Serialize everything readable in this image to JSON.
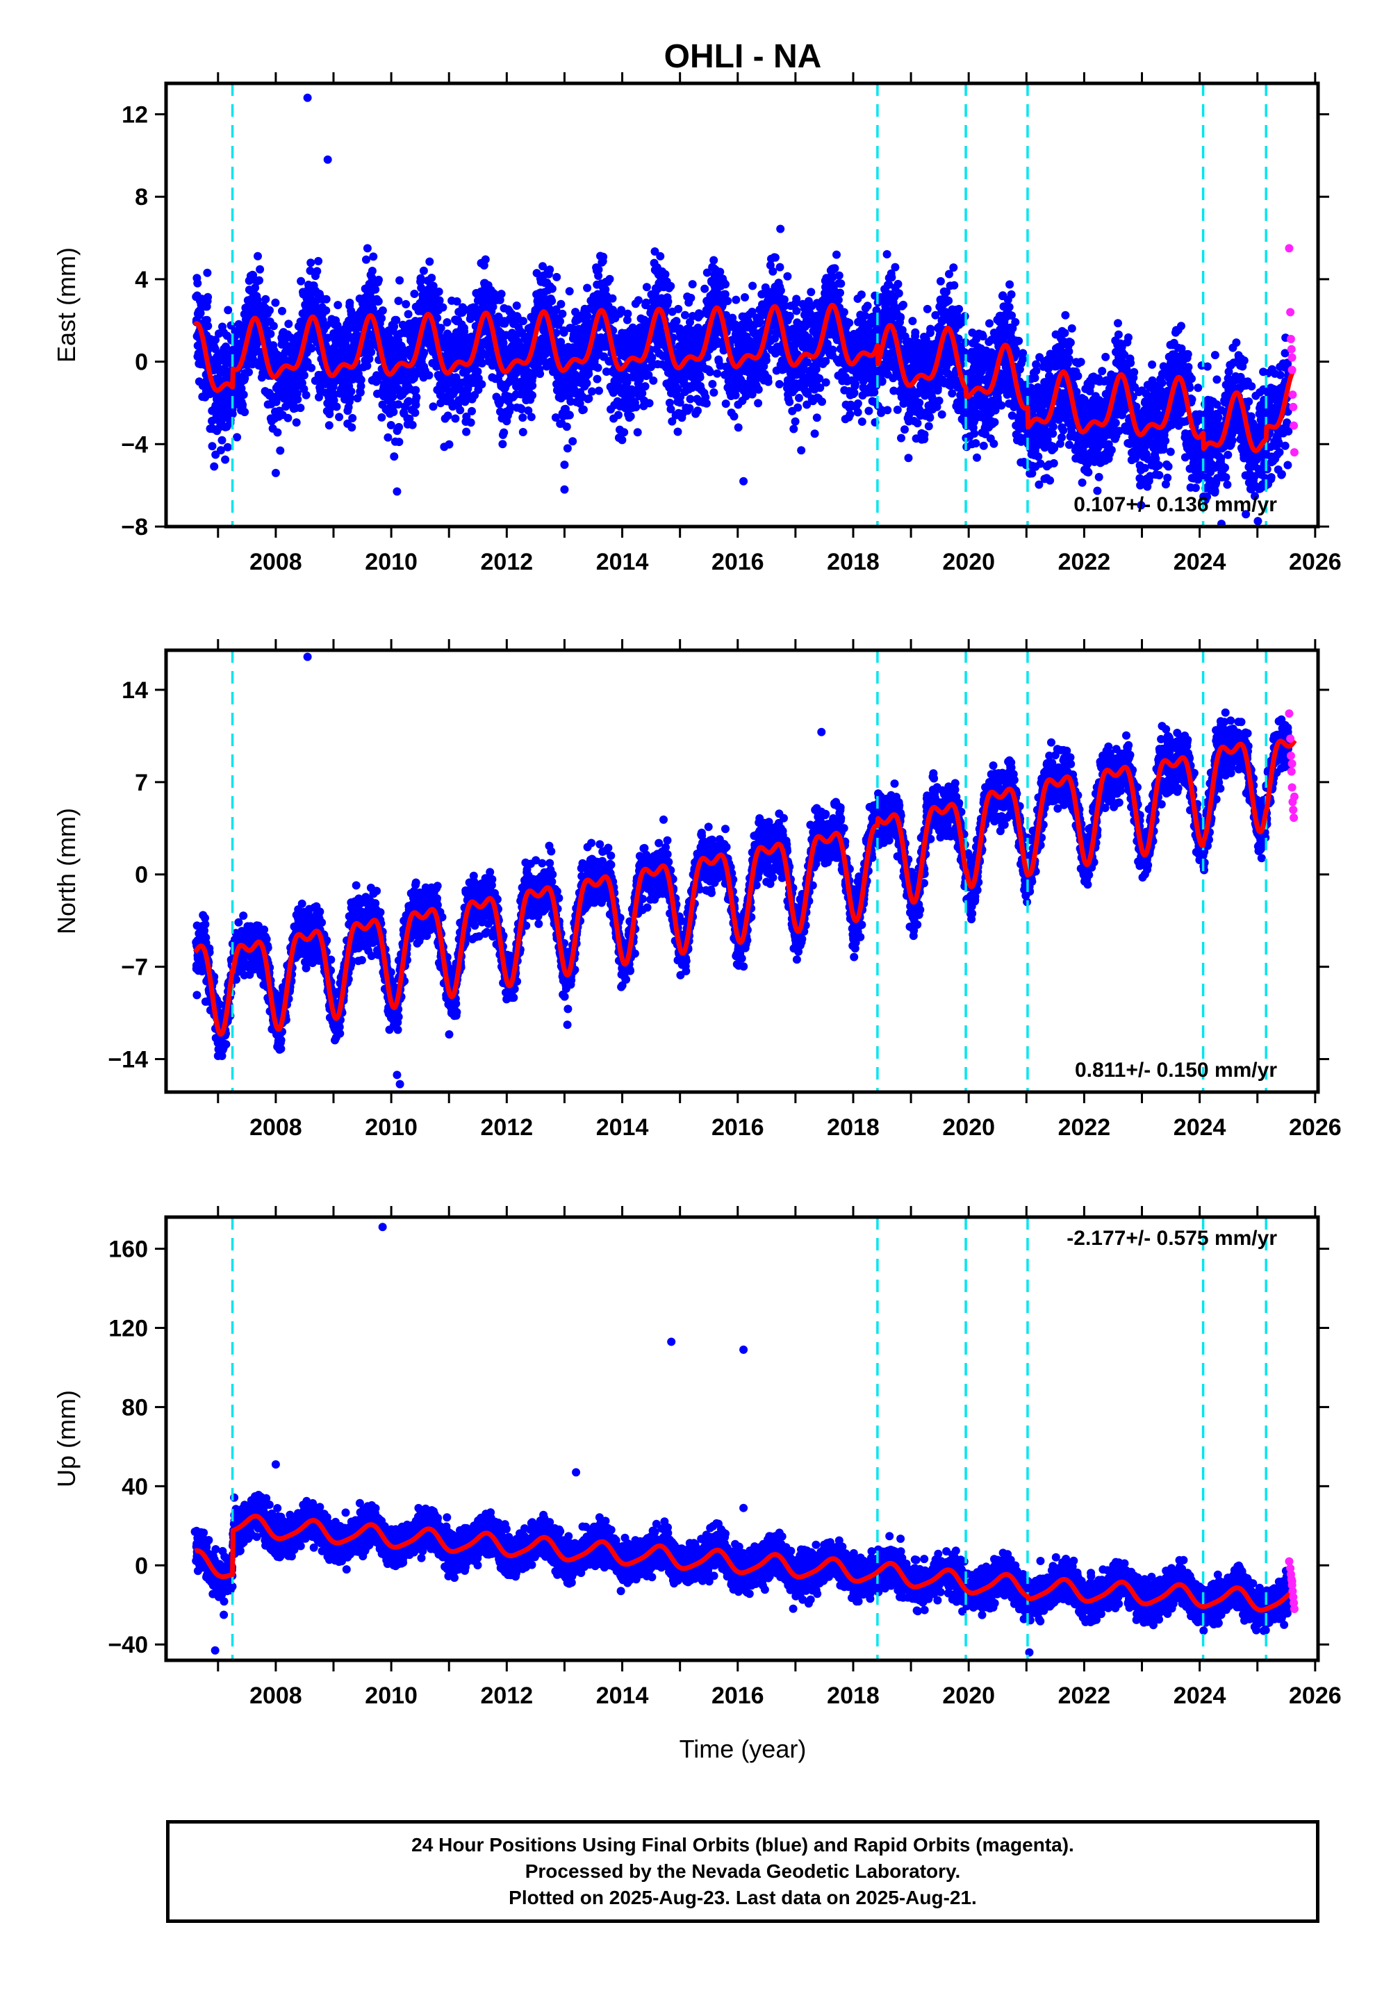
{
  "chart_data": {
    "type": "scatter",
    "title": "OHLI - NA",
    "xlabel": "Time (year)",
    "xlim": [
      2006.1,
      2026.05
    ],
    "xticks": [
      2008,
      2010,
      2012,
      2014,
      2016,
      2018,
      2020,
      2022,
      2024,
      2026
    ],
    "steps": [
      2007.25,
      2018.42,
      2019.95,
      2021.02,
      2024.06,
      2025.15
    ],
    "colors": {
      "final_orbits": "#0000ff",
      "rapid_orbits": "#ff22ff",
      "model_fit": "#ff0000",
      "steps": "#00e5ee"
    },
    "panels": [
      {
        "name": "east",
        "ylabel": "East (mm)",
        "ylim": [
          -8,
          13.5
        ],
        "yticks": [
          -8,
          -4,
          0,
          4,
          8,
          12
        ],
        "rate_text": "0.107+/- 0.136 mm/yr",
        "rate_position": "bottom-right",
        "model": {
          "trend": [
            [
              2006.6,
              0.1
            ],
            [
              2007.25,
              -0.6
            ],
            [
              2007.26,
              0.3
            ],
            [
              2018.42,
              1.0
            ],
            [
              2018.43,
              0.0
            ],
            [
              2019.95,
              -0.2
            ],
            [
              2019.96,
              -0.6
            ],
            [
              2021.02,
              -1.2
            ],
            [
              2021.03,
              -2.2
            ],
            [
              2024.06,
              -2.6
            ],
            [
              2024.07,
              -3.4
            ],
            [
              2025.15,
              -3.2
            ],
            [
              2025.16,
              -2.6
            ],
            [
              2025.65,
              -2.2
            ]
          ],
          "annual_amplitude": 1.2,
          "annual_phase": 0.62,
          "semiannual_amplitude": 0.6,
          "semiannual_phase": 0.15
        },
        "noise_sd": 1.3,
        "outliers": [
          [
            2008.55,
            12.8
          ],
          [
            2008.9,
            9.8
          ],
          [
            2010.1,
            -6.3
          ],
          [
            2010.05,
            -4.6
          ],
          [
            2013.0,
            -6.2
          ],
          [
            2013.0,
            -5.0
          ],
          [
            2016.1,
            -5.8
          ],
          [
            2017.1,
            -4.3
          ],
          [
            2008.0,
            -5.4
          ],
          [
            2006.9,
            -4.1
          ],
          [
            2024.8,
            -7.4
          ]
        ],
        "rapid_points": [
          [
            2025.55,
            5.5
          ],
          [
            2025.57,
            2.4
          ],
          [
            2025.58,
            1.1
          ],
          [
            2025.59,
            0.6
          ],
          [
            2025.6,
            -0.4
          ],
          [
            2025.61,
            -1.6
          ],
          [
            2025.62,
            -2.2
          ],
          [
            2025.63,
            -3.1
          ],
          [
            2025.64,
            -4.4
          ],
          [
            2025.6,
            0.2
          ]
        ]
      },
      {
        "name": "north",
        "ylabel": "North (mm)",
        "ylim": [
          -16.5,
          17
        ],
        "yticks": [
          -14,
          -7,
          0,
          7,
          14
        ],
        "rate_text": "0.811+/- 0.150 mm/yr",
        "rate_position": "bottom-right",
        "model": {
          "trend": [
            [
              2006.6,
              -7.8
            ],
            [
              2007.25,
              -7.4
            ],
            [
              2007.26,
              -7.8
            ],
            [
              2018.42,
              1.4
            ],
            [
              2018.43,
              2.0
            ],
            [
              2019.95,
              3.2
            ],
            [
              2019.96,
              3.6
            ],
            [
              2021.02,
              4.4
            ],
            [
              2021.03,
              4.6
            ],
            [
              2024.06,
              6.8
            ],
            [
              2024.07,
              7.1
            ],
            [
              2025.15,
              7.9
            ],
            [
              2025.16,
              7.6
            ],
            [
              2025.65,
              8.0
            ]
          ],
          "annual_amplitude": 3.2,
          "annual_phase": 0.55,
          "semiannual_amplitude": 1.4,
          "semiannual_phase": 0.3
        },
        "noise_sd": 1.0,
        "outliers": [
          [
            2008.55,
            16.5
          ],
          [
            2010.15,
            -15.9
          ],
          [
            2010.1,
            -15.2
          ],
          [
            2013.05,
            -11.4
          ],
          [
            2017.45,
            10.8
          ]
        ],
        "rapid_points": [
          [
            2025.55,
            12.2
          ],
          [
            2025.57,
            10.3
          ],
          [
            2025.58,
            9.0
          ],
          [
            2025.59,
            7.8
          ],
          [
            2025.6,
            6.6
          ],
          [
            2025.61,
            5.5
          ],
          [
            2025.62,
            4.9
          ],
          [
            2025.63,
            4.3
          ],
          [
            2025.64,
            5.9
          ],
          [
            2025.6,
            8.4
          ]
        ]
      },
      {
        "name": "up",
        "ylabel": "Up (mm)",
        "ylim": [
          -48,
          176
        ],
        "yticks": [
          -40,
          0,
          40,
          80,
          120,
          160
        ],
        "rate_text": "-2.177+/- 0.575 mm/yr",
        "rate_position": "top-right",
        "model": {
          "trend": [
            [
              2006.6,
              2.0
            ],
            [
              2007.25,
              -2.0
            ],
            [
              2007.26,
              20.0
            ],
            [
              2018.42,
              -4.0
            ],
            [
              2018.43,
              -4.0
            ],
            [
              2019.95,
              -9.0
            ],
            [
              2019.96,
              -9.0
            ],
            [
              2021.02,
              -11.0
            ],
            [
              2021.03,
              -12.0
            ],
            [
              2024.06,
              -16.0
            ],
            [
              2024.07,
              -16.0
            ],
            [
              2025.15,
              -18.0
            ],
            [
              2025.16,
              -18.0
            ],
            [
              2025.65,
              -19.0
            ]
          ],
          "annual_amplitude": 5.0,
          "annual_phase": 0.62,
          "semiannual_amplitude": 1.0,
          "semiannual_phase": 0.2
        },
        "noise_sd": 5.0,
        "outliers": [
          [
            2009.85,
            171
          ],
          [
            2014.85,
            113
          ],
          [
            2016.1,
            109
          ],
          [
            2013.2,
            47
          ],
          [
            2008.0,
            51
          ],
          [
            2016.1,
            29
          ],
          [
            2006.95,
            -43
          ],
          [
            2007.1,
            -25
          ],
          [
            2021.05,
            -44
          ],
          [
            2006.6,
            17
          ]
        ],
        "rapid_points": [
          [
            2025.55,
            2.0
          ],
          [
            2025.57,
            -1.5
          ],
          [
            2025.58,
            -4.5
          ],
          [
            2025.59,
            -7.0
          ],
          [
            2025.6,
            -10.0
          ],
          [
            2025.61,
            -13.0
          ],
          [
            2025.62,
            -16.0
          ],
          [
            2025.63,
            -19.0
          ],
          [
            2025.64,
            -22.0
          ],
          [
            2025.6,
            -8.0
          ]
        ]
      }
    ]
  },
  "caption": {
    "line1": "24 Hour Positions Using Final Orbits (blue) and Rapid Orbits (magenta).",
    "line2": "Processed by the Nevada Geodetic Laboratory.",
    "line3": "Plotted on 2025-Aug-23. Last data on 2025-Aug-21."
  }
}
